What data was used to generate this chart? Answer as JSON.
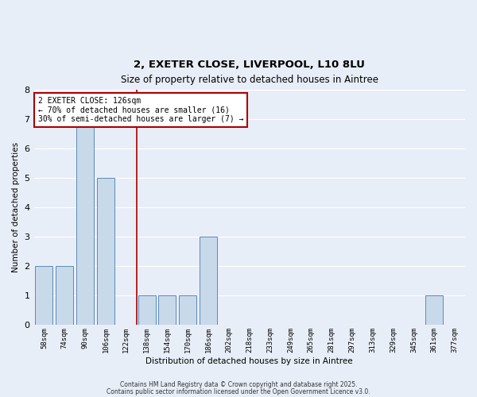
{
  "title_line1": "2, EXETER CLOSE, LIVERPOOL, L10 8LU",
  "title_line2": "Size of property relative to detached houses in Aintree",
  "xlabel": "Distribution of detached houses by size in Aintree",
  "ylabel": "Number of detached properties",
  "bar_labels": [
    "58sqm",
    "74sqm",
    "90sqm",
    "106sqm",
    "122sqm",
    "138sqm",
    "154sqm",
    "170sqm",
    "186sqm",
    "202sqm",
    "218sqm",
    "233sqm",
    "249sqm",
    "265sqm",
    "281sqm",
    "297sqm",
    "313sqm",
    "329sqm",
    "345sqm",
    "361sqm",
    "377sqm"
  ],
  "bar_heights": [
    2,
    2,
    7,
    5,
    0,
    1,
    1,
    1,
    3,
    0,
    0,
    0,
    0,
    0,
    0,
    0,
    0,
    0,
    0,
    1,
    0
  ],
  "bar_color": "#c8d9ea",
  "bar_edgecolor": "#5b8ab8",
  "red_line_x": 4.5,
  "annotation_text": "2 EXETER CLOSE: 126sqm\n← 70% of detached houses are smaller (16)\n30% of semi-detached houses are larger (7) →",
  "annotation_box_facecolor": "#ffffff",
  "annotation_box_edgecolor": "#aa0000",
  "ylim": [
    0,
    8
  ],
  "yticks": [
    0,
    1,
    2,
    3,
    4,
    5,
    6,
    7,
    8
  ],
  "background_color": "#e8eef8",
  "grid_color": "#ffffff",
  "title1_fontsize": 9.5,
  "title2_fontsize": 8.5,
  "footer_line1": "Contains HM Land Registry data © Crown copyright and database right 2025.",
  "footer_line2": "Contains public sector information licensed under the Open Government Licence v3.0."
}
